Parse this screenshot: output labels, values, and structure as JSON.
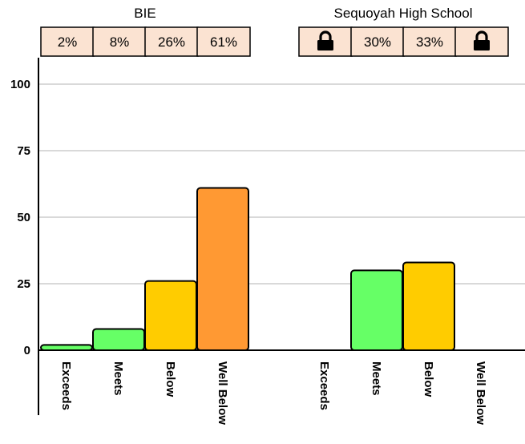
{
  "chart_data": {
    "type": "bar",
    "categories": [
      "Exceeds",
      "Meets",
      "Below",
      "Well Below"
    ],
    "ylim": [
      0,
      100
    ],
    "yticks": [
      0,
      25,
      50,
      75,
      100
    ],
    "grid": true,
    "colors": {
      "Exceeds": "#66ff66",
      "Meets": "#66ff66",
      "Below": "#ffcc00",
      "Well Below": "#ff9933",
      "label_box_fill": "#fbe3d2"
    },
    "groups": [
      {
        "name": "BIE",
        "values": [
          2,
          8,
          26,
          61
        ],
        "labels": [
          "2%",
          "8%",
          "26%",
          "61%"
        ],
        "suppressed": [
          false,
          false,
          false,
          false
        ]
      },
      {
        "name": "Sequoyah High School",
        "values": [
          null,
          30,
          33,
          null
        ],
        "labels": [
          "",
          "30%",
          "33%",
          ""
        ],
        "suppressed": [
          true,
          false,
          false,
          true
        ]
      }
    ]
  }
}
